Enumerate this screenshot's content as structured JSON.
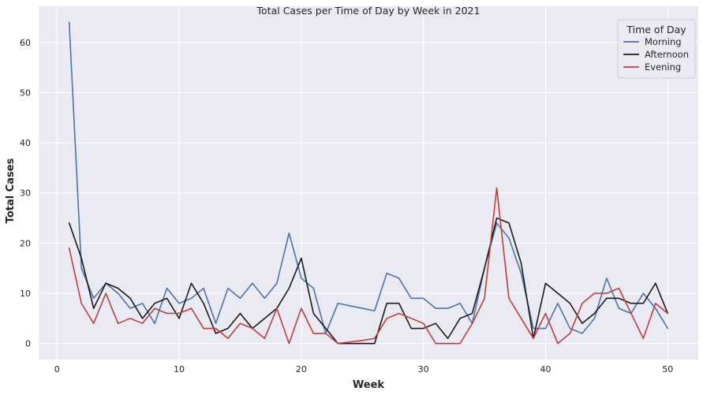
{
  "chart_data": {
    "type": "line",
    "title": "Total Cases per Time of Day by Week in 2021",
    "xlabel": "Week",
    "ylabel": "Total Cases",
    "xlim": [
      -1.5,
      52.5
    ],
    "ylim": [
      -3.2,
      67.2
    ],
    "xticks": [
      0,
      10,
      20,
      30,
      40,
      50
    ],
    "yticks": [
      0,
      10,
      20,
      30,
      40,
      50,
      60
    ],
    "grid": true,
    "legend": {
      "title": "Time of Day",
      "placement": "top-right"
    },
    "x": [
      1,
      2,
      3,
      4,
      5,
      6,
      7,
      8,
      9,
      10,
      11,
      12,
      13,
      14,
      15,
      16,
      17,
      18,
      19,
      20,
      21,
      22,
      23,
      24,
      25,
      26,
      27,
      28,
      29,
      30,
      31,
      32,
      33,
      34,
      35,
      36,
      37,
      38,
      39,
      40,
      41,
      42,
      43,
      44,
      45,
      46,
      47,
      48,
      49,
      50
    ],
    "series": [
      {
        "name": "Morning",
        "color": "#4C72B0",
        "values": [
          64,
          15,
          9,
          12,
          10,
          7,
          8,
          4,
          11,
          8,
          9,
          11,
          4,
          11,
          9,
          12,
          9,
          12,
          22,
          13,
          11,
          2,
          8,
          7.5,
          7,
          6.5,
          14,
          13,
          9,
          9,
          7,
          7,
          8,
          4,
          15,
          24,
          21,
          14,
          3,
          3,
          8,
          3,
          2,
          5,
          13,
          7,
          6,
          10,
          7,
          3
        ]
      },
      {
        "name": "Afternoon",
        "color": "#1a1a1a",
        "values": [
          24,
          17,
          7,
          12,
          11,
          9,
          5,
          8,
          9,
          5,
          12,
          8,
          2,
          3,
          6,
          3,
          5,
          7,
          11,
          17,
          6,
          3,
          0,
          0,
          0,
          0,
          8,
          8,
          3,
          3,
          4,
          1,
          5,
          6,
          15,
          25,
          24,
          16,
          1,
          12,
          10,
          8,
          4,
          6,
          9,
          9,
          8,
          8,
          12,
          6
        ]
      },
      {
        "name": "Evening",
        "color": "#C03D3E",
        "values": [
          19,
          8,
          4,
          10,
          4,
          5,
          4,
          7,
          6,
          6,
          7,
          3,
          3,
          1,
          4,
          3,
          1,
          7,
          0,
          7,
          2,
          2,
          0,
          0.3,
          0.6,
          1,
          5,
          6,
          5,
          4,
          0,
          0,
          0,
          4,
          9,
          31,
          9,
          5,
          1,
          6,
          0,
          2,
          8,
          10,
          10,
          11,
          6,
          1,
          8,
          6
        ]
      }
    ]
  }
}
